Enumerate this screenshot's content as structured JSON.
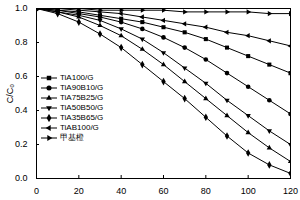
{
  "chart_data": {
    "type": "line",
    "y_label": "C/C₀",
    "x": [
      0,
      10,
      20,
      30,
      40,
      50,
      60,
      70,
      80,
      90,
      100,
      110,
      120
    ],
    "xlim": [
      0,
      120
    ],
    "xticks": [
      0,
      20,
      40,
      60,
      80,
      100,
      120
    ],
    "ylim": [
      0,
      1.0
    ],
    "yticks": [
      {
        "value": 0,
        "label": "0.0"
      },
      {
        "value": 0.2,
        "label": "0.2"
      },
      {
        "value": 0.4,
        "label": "0.4"
      },
      {
        "value": 0.6,
        "label": "0.6"
      },
      {
        "value": 0.8,
        "label": "0.8"
      },
      {
        "value": 1.0,
        "label": "1.0"
      }
    ],
    "legend": "left",
    "series": [
      {
        "name": "TiA100/G",
        "color": "#000000",
        "marker": "square",
        "values": [
          1.0,
          0.99,
          0.98,
          0.96,
          0.94,
          0.92,
          0.89,
          0.86,
          0.82,
          0.77,
          0.72,
          0.67,
          0.62
        ]
      },
      {
        "name": "TiA90B10/G",
        "color": "#000000",
        "marker": "circle",
        "values": [
          1.0,
          0.99,
          0.97,
          0.95,
          0.92,
          0.88,
          0.83,
          0.77,
          0.7,
          0.62,
          0.54,
          0.46,
          0.38
        ]
      },
      {
        "name": "TiA75B25/G",
        "color": "#000000",
        "marker": "triangle",
        "values": [
          1.0,
          0.98,
          0.95,
          0.9,
          0.84,
          0.76,
          0.67,
          0.57,
          0.47,
          0.37,
          0.27,
          0.18,
          0.1
        ]
      },
      {
        "name": "TiA50B50/G",
        "color": "#000000",
        "marker": "triangle-down",
        "values": [
          1.0,
          0.98,
          0.96,
          0.93,
          0.88,
          0.82,
          0.74,
          0.65,
          0.56,
          0.46,
          0.37,
          0.28,
          0.2
        ]
      },
      {
        "name": "TiA35B65/G",
        "color": "#000000",
        "marker": "diamond",
        "values": [
          1.0,
          0.97,
          0.92,
          0.85,
          0.77,
          0.67,
          0.57,
          0.47,
          0.36,
          0.25,
          0.15,
          0.08,
          0.03
        ]
      },
      {
        "name": "TiAB100/G",
        "color": "#000000",
        "marker": "triangle-left",
        "values": [
          1.0,
          1.0,
          0.99,
          0.98,
          0.97,
          0.95,
          0.93,
          0.91,
          0.89,
          0.86,
          0.84,
          0.81,
          0.78
        ]
      },
      {
        "name": "甲基橙",
        "color": "#000000",
        "marker": "triangle-right",
        "values": [
          1.0,
          1.0,
          1.0,
          0.99,
          0.99,
          0.99,
          0.99,
          0.98,
          0.98,
          0.98,
          0.98,
          0.97,
          0.97
        ]
      }
    ]
  }
}
